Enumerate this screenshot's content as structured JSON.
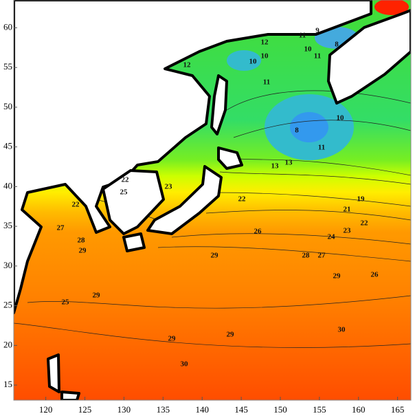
{
  "chart_data": {
    "type": "contour-map",
    "xlim": [
      115.9,
      166.7
    ],
    "ylim": [
      13.1,
      63.5
    ],
    "xticks": [
      120,
      125,
      130,
      135,
      140,
      145,
      150,
      155,
      160,
      165
    ],
    "yticks": [
      15,
      20,
      25,
      30,
      35,
      40,
      45,
      50,
      55,
      60
    ],
    "contour_labels": [
      12,
      11,
      9,
      10,
      8,
      11,
      10,
      10,
      11,
      10,
      8,
      11,
      13,
      13,
      22,
      22,
      23,
      25,
      19,
      21,
      22,
      23,
      26,
      24,
      28,
      27,
      29,
      29,
      26,
      29,
      29,
      30,
      29,
      30,
      22,
      27,
      29,
      28,
      25,
      12
    ]
  }
}
